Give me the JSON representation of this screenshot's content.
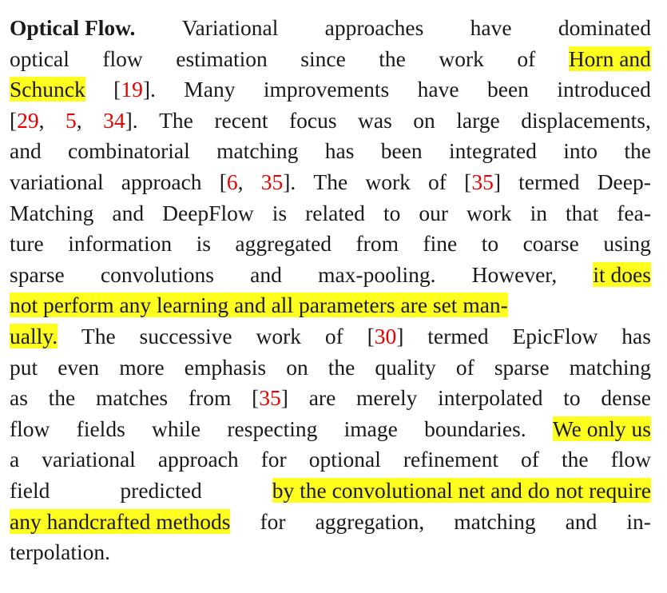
{
  "paragraph": {
    "heading": "Optical Flow.",
    "lines": [
      [
        {
          "t": "Optical Flow.",
          "b": true
        },
        {
          "t": "Variational"
        },
        {
          "t": "approaches"
        },
        {
          "t": "have"
        },
        {
          "t": "dominated"
        }
      ],
      [
        {
          "t": "optical"
        },
        {
          "t": "flow"
        },
        {
          "t": "estimation"
        },
        {
          "t": "since"
        },
        {
          "t": "the"
        },
        {
          "t": "work"
        },
        {
          "t": "of"
        },
        {
          "t": "Horn and",
          "h": true
        }
      ],
      [
        [
          {
            "t": "Schunck",
            "h": true
          }
        ],
        [
          {
            "t": "["
          },
          {
            "t": "19",
            "c": true
          },
          {
            "t": "]."
          }
        ],
        {
          "t": "Many"
        },
        {
          "t": "improvements"
        },
        {
          "t": "have"
        },
        {
          "t": "been"
        },
        {
          "t": "introduced"
        }
      ],
      [
        [
          {
            "t": "["
          },
          {
            "t": "29",
            "c": true
          },
          {
            "t": ","
          }
        ],
        [
          {
            "t": "5",
            "c": true
          },
          {
            "t": ","
          }
        ],
        [
          {
            "t": "34",
            "c": true
          },
          {
            "t": "]."
          }
        ],
        {
          "t": "The"
        },
        {
          "t": "recent"
        },
        {
          "t": "focus"
        },
        {
          "t": "was"
        },
        {
          "t": "on"
        },
        {
          "t": "large"
        },
        {
          "t": "displacements,"
        }
      ],
      [
        {
          "t": "and"
        },
        {
          "t": "combinatorial"
        },
        {
          "t": "matching"
        },
        {
          "t": "has"
        },
        {
          "t": "been"
        },
        {
          "t": "integrated"
        },
        {
          "t": "into"
        },
        {
          "t": "the"
        }
      ],
      [
        {
          "t": "variational"
        },
        {
          "t": "approach"
        },
        [
          {
            "t": "["
          },
          {
            "t": "6",
            "c": true
          },
          {
            "t": ","
          }
        ],
        [
          {
            "t": "35",
            "c": true
          },
          {
            "t": "]."
          }
        ],
        {
          "t": "The"
        },
        {
          "t": "work"
        },
        {
          "t": "of"
        },
        [
          {
            "t": "["
          },
          {
            "t": "35",
            "c": true
          },
          {
            "t": "]"
          }
        ],
        {
          "t": "termed"
        },
        {
          "t": "Deep-"
        }
      ],
      [
        {
          "t": "Matching"
        },
        {
          "t": "and"
        },
        {
          "t": "DeepFlow"
        },
        {
          "t": "is"
        },
        {
          "t": "related"
        },
        {
          "t": "to"
        },
        {
          "t": "our"
        },
        {
          "t": "work"
        },
        {
          "t": "in"
        },
        {
          "t": "that"
        },
        {
          "t": "fea-"
        }
      ],
      [
        {
          "t": "ture"
        },
        {
          "t": "information"
        },
        {
          "t": "is"
        },
        {
          "t": "aggregated"
        },
        {
          "t": "from"
        },
        {
          "t": "fine"
        },
        {
          "t": "to"
        },
        {
          "t": "coarse"
        },
        {
          "t": "using"
        }
      ],
      [
        {
          "t": "sparse"
        },
        {
          "t": "convolutions"
        },
        {
          "t": "and"
        },
        {
          "t": "max-pooling."
        },
        {
          "t": "However,"
        },
        {
          "t": "it does",
          "h": true
        }
      ],
      [
        {
          "t": "not perform any learning and all parameters are set man-",
          "h": true
        }
      ],
      [
        {
          "t": "ually.",
          "h": true
        },
        {
          "t": "The"
        },
        {
          "t": "successive"
        },
        {
          "t": "work"
        },
        {
          "t": "of"
        },
        [
          {
            "t": "["
          },
          {
            "t": "30",
            "c": true
          },
          {
            "t": "]"
          }
        ],
        {
          "t": "termed"
        },
        {
          "t": "EpicFlow"
        },
        {
          "t": "has"
        }
      ],
      [
        {
          "t": "put"
        },
        {
          "t": "even"
        },
        {
          "t": "more"
        },
        {
          "t": "emphasis"
        },
        {
          "t": "on"
        },
        {
          "t": "the"
        },
        {
          "t": "quality"
        },
        {
          "t": "of"
        },
        {
          "t": "sparse"
        },
        {
          "t": "matching"
        }
      ],
      [
        {
          "t": "as"
        },
        {
          "t": "the"
        },
        {
          "t": "matches"
        },
        {
          "t": "from"
        },
        [
          {
            "t": "["
          },
          {
            "t": "35",
            "c": true
          },
          {
            "t": "]"
          }
        ],
        {
          "t": "are"
        },
        {
          "t": "merely"
        },
        {
          "t": "interpolated"
        },
        {
          "t": "to"
        },
        {
          "t": "dense"
        }
      ],
      [
        {
          "t": "flow"
        },
        {
          "t": "fields"
        },
        {
          "t": "while"
        },
        {
          "t": "respecting"
        },
        {
          "t": "image"
        },
        {
          "t": "boundaries."
        },
        {
          "t": "We only us",
          "h": true
        }
      ],
      [
        {
          "t": "a"
        },
        {
          "t": "variational"
        },
        {
          "t": "approach"
        },
        {
          "t": "for"
        },
        {
          "t": "optional"
        },
        {
          "t": "refinement"
        },
        {
          "t": "of"
        },
        {
          "t": "the"
        },
        {
          "t": "flow"
        }
      ],
      [
        {
          "t": "field"
        },
        {
          "t": "predicted"
        },
        {
          "t": "by the convolutional net and do not require",
          "h": true
        }
      ],
      [
        {
          "t": "any handcrafted methods",
          "h": true
        },
        {
          "t": "for"
        },
        {
          "t": "aggregation,"
        },
        {
          "t": "matching"
        },
        {
          "t": "and"
        },
        {
          "t": "in-"
        }
      ],
      [
        {
          "t": "terpolation."
        }
      ]
    ]
  },
  "colors": {
    "text": "#1a1a1a",
    "highlight": "#ffff1f",
    "citation": "#e60000"
  }
}
